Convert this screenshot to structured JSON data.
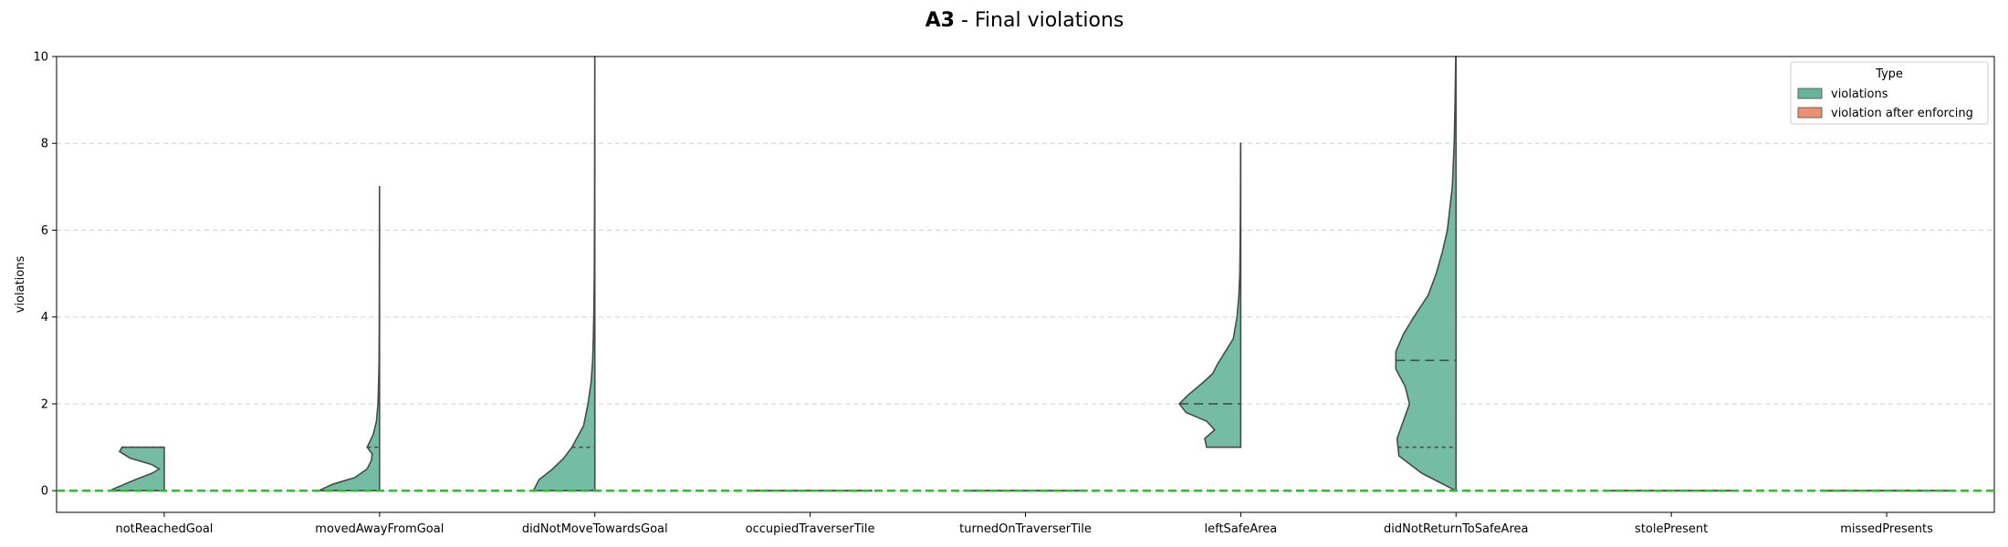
{
  "title": {
    "bold": "A3",
    "rest": " - Final violations"
  },
  "colors": {
    "violations": "#66b59a",
    "violation_after_enforcing": "#ec9070",
    "outline": "#4a4a4a",
    "reference_line": "#22c322",
    "grid": "#d0d0d0"
  },
  "chart_data": {
    "type": "violin",
    "title": "A3 - Final violations",
    "xlabel": "",
    "ylabel": "violations",
    "ylim": [
      -0.5,
      10
    ],
    "yticks": [
      0,
      2,
      4,
      6,
      8,
      10
    ],
    "grid": "y-dashed",
    "reference_line": {
      "y": 0,
      "style": "dashed",
      "color": "green"
    },
    "categories": [
      "notReachedGoal",
      "movedAwayFromGoal",
      "didNotMoveTowardsGoal",
      "occupiedTraverserTile",
      "turnedOnTraverserTile",
      "leftSafeArea",
      "didNotReturnToSafeArea",
      "stolePresent",
      "missedPresents"
    ],
    "legend": {
      "title": "Type",
      "position": "top-right",
      "entries": [
        "violations",
        "violation after enforcing"
      ]
    },
    "series": [
      {
        "name": "violations",
        "side": "left",
        "violins": [
          {
            "category": "notReachedGoal",
            "range": [
              0,
              1
            ],
            "quartiles": [
              0,
              1
            ],
            "shape": [
              [
                0,
                0.88
              ],
              [
                0.1,
                0.72
              ],
              [
                0.25,
                0.47
              ],
              [
                0.4,
                0.2
              ],
              [
                0.5,
                0.08
              ],
              [
                0.6,
                0.2
              ],
              [
                0.75,
                0.55
              ],
              [
                0.9,
                0.72
              ],
              [
                1,
                0.68
              ]
            ]
          },
          {
            "category": "movedAwayFromGoal",
            "range": [
              0,
              7
            ],
            "quartiles": [
              0,
              1
            ],
            "shape": [
              [
                0,
                0.98
              ],
              [
                0.15,
                0.75
              ],
              [
                0.3,
                0.4
              ],
              [
                0.5,
                0.2
              ],
              [
                0.7,
                0.13
              ],
              [
                0.85,
                0.12
              ],
              [
                1,
                0.2
              ],
              [
                1.3,
                0.1
              ],
              [
                1.6,
                0.05
              ],
              [
                2,
                0.025
              ],
              [
                2.5,
                0.015
              ],
              [
                3,
                0.008
              ],
              [
                4,
                0.004
              ],
              [
                5,
                0.003
              ],
              [
                6,
                0.002
              ],
              [
                7,
                0.001
              ]
            ]
          },
          {
            "category": "didNotMoveTowardsGoal",
            "range": [
              0,
              10
            ],
            "quartiles": [
              0,
              1
            ],
            "shape": [
              [
                0,
                0.99
              ],
              [
                0.25,
                0.9
              ],
              [
                0.5,
                0.68
              ],
              [
                0.75,
                0.5
              ],
              [
                1,
                0.37
              ],
              [
                1.5,
                0.18
              ],
              [
                2,
                0.11
              ],
              [
                2.5,
                0.06
              ],
              [
                3,
                0.035
              ],
              [
                3.5,
                0.025
              ],
              [
                4,
                0.017
              ],
              [
                5,
                0.009
              ],
              [
                6,
                0.006
              ],
              [
                7,
                0.004
              ],
              [
                8,
                0.003
              ],
              [
                9,
                0.002
              ],
              [
                10,
                0.001
              ]
            ]
          },
          {
            "category": "occupiedTraverserTile",
            "range": [
              0,
              0
            ],
            "quartiles": [
              0,
              0
            ],
            "shape": []
          },
          {
            "category": "turnedOnTraverserTile",
            "range": [
              0,
              0
            ],
            "quartiles": [
              0,
              0
            ],
            "shape": []
          },
          {
            "category": "leftSafeArea",
            "range": [
              1,
              8
            ],
            "quartiles": [
              2,
              2
            ],
            "shape": [
              [
                1,
                0.55
              ],
              [
                1.2,
                0.58
              ],
              [
                1.4,
                0.42
              ],
              [
                1.6,
                0.55
              ],
              [
                1.8,
                0.88
              ],
              [
                2,
                0.99
              ],
              [
                2.2,
                0.85
              ],
              [
                2.5,
                0.6
              ],
              [
                2.7,
                0.45
              ],
              [
                2.9,
                0.38
              ],
              [
                3.2,
                0.25
              ],
              [
                3.5,
                0.12
              ],
              [
                4,
                0.06
              ],
              [
                4.5,
                0.03
              ],
              [
                5,
                0.015
              ],
              [
                6,
                0.008
              ],
              [
                7,
                0.004
              ],
              [
                8,
                0.002
              ]
            ]
          },
          {
            "category": "didNotReturnToSafeArea",
            "range": [
              0,
              10
            ],
            "quartiles": [
              1,
              3
            ],
            "shape": [
              [
                0,
                0.005
              ],
              [
                0.4,
                0.55
              ],
              [
                0.8,
                0.92
              ],
              [
                1.2,
                0.95
              ],
              [
                1.6,
                0.85
              ],
              [
                2,
                0.75
              ],
              [
                2.4,
                0.82
              ],
              [
                2.8,
                0.97
              ],
              [
                3.2,
                0.97
              ],
              [
                3.6,
                0.85
              ],
              [
                4,
                0.68
              ],
              [
                4.5,
                0.45
              ],
              [
                5,
                0.32
              ],
              [
                5.5,
                0.22
              ],
              [
                6,
                0.14
              ],
              [
                7,
                0.06
              ],
              [
                8,
                0.03
              ],
              [
                9,
                0.015
              ],
              [
                10,
                0.005
              ]
            ]
          },
          {
            "category": "stolePresent",
            "range": [
              0,
              0
            ],
            "quartiles": [
              0,
              0
            ],
            "shape": []
          },
          {
            "category": "missedPresents",
            "range": [
              0,
              0
            ],
            "quartiles": [
              0,
              0
            ],
            "shape": []
          }
        ]
      },
      {
        "name": "violation after enforcing",
        "side": "right",
        "violins": []
      }
    ]
  }
}
